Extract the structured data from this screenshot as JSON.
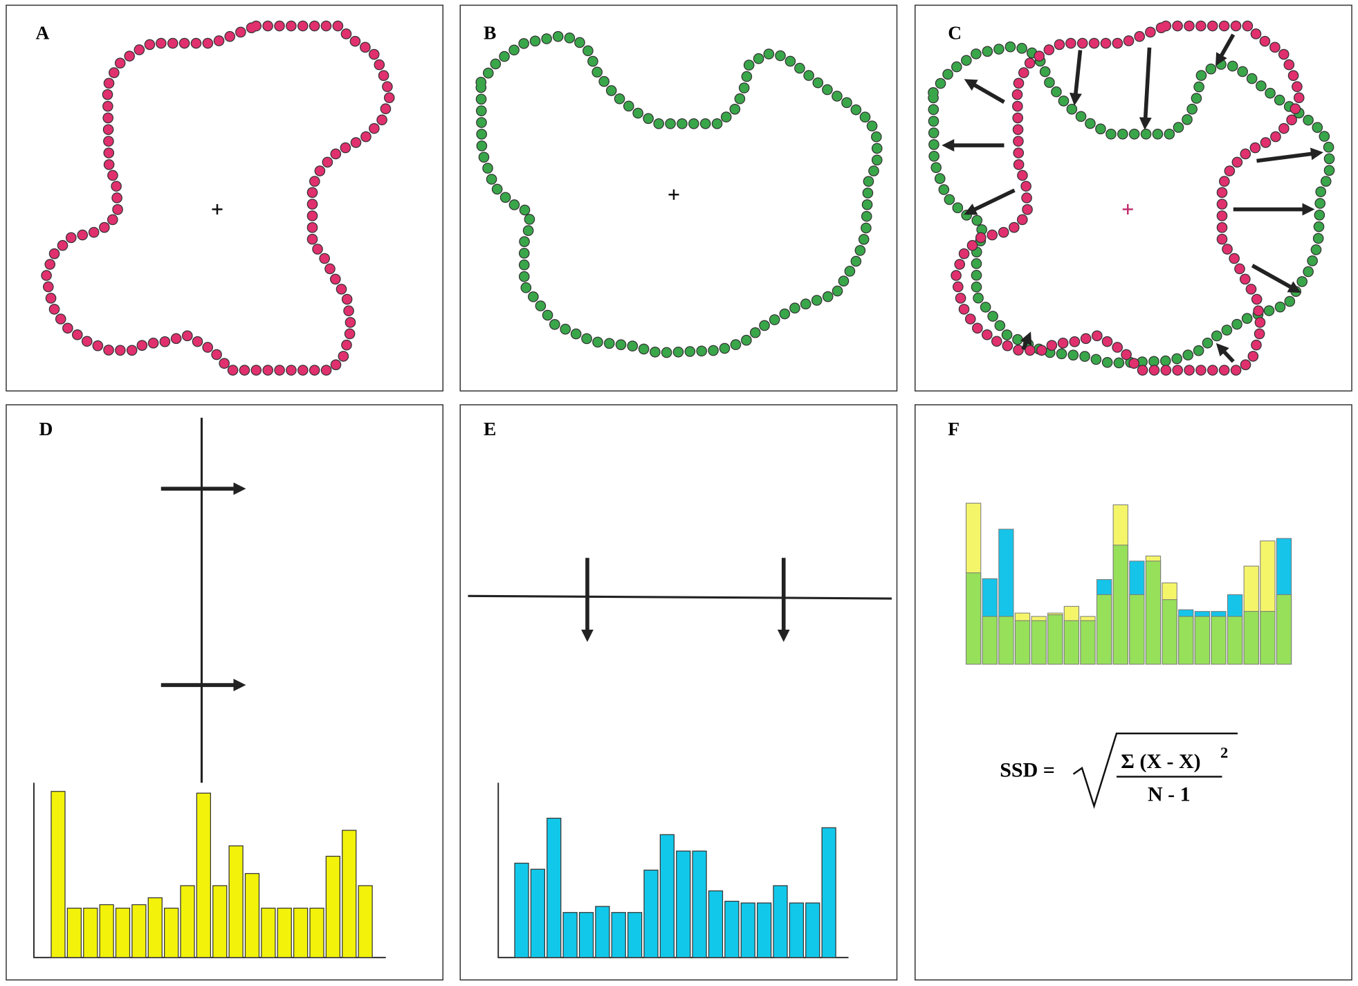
{
  "panels": [
    {
      "label": "A"
    },
    {
      "label": "B"
    },
    {
      "label": "C"
    },
    {
      "label": "D"
    },
    {
      "label": "E"
    },
    {
      "label": "F"
    }
  ],
  "histograms": {
    "D": {
      "color": "#f2f20a",
      "values": [
        192,
        57,
        57,
        61,
        57,
        61,
        69,
        57,
        83,
        190,
        83,
        129,
        97,
        57,
        57,
        57,
        57,
        117,
        147,
        83
      ]
    },
    "E": {
      "color": "#12c8ea",
      "values": [
        109,
        102,
        161,
        52,
        52,
        59,
        52,
        52,
        101,
        142,
        123,
        123,
        77,
        65,
        63,
        63,
        83,
        63,
        63,
        150
      ]
    }
  },
  "formula": {
    "lhs": "SSD =",
    "numerator": "Σ (X - X)",
    "exponent": "2",
    "denominator": "N - 1"
  }
}
